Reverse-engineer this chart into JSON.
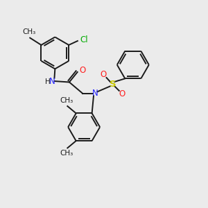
{
  "bg_color": "#ebebeb",
  "bond_color": "#1a1a1a",
  "N_color": "#2020ff",
  "O_color": "#ff2020",
  "S_color": "#c8c800",
  "Cl_color": "#00aa00",
  "line_width": 1.4,
  "font_size": 8.5,
  "figsize": [
    3.0,
    3.0
  ],
  "dpi": 100,
  "xlim": [
    0,
    10
  ],
  "ylim": [
    0,
    10
  ]
}
